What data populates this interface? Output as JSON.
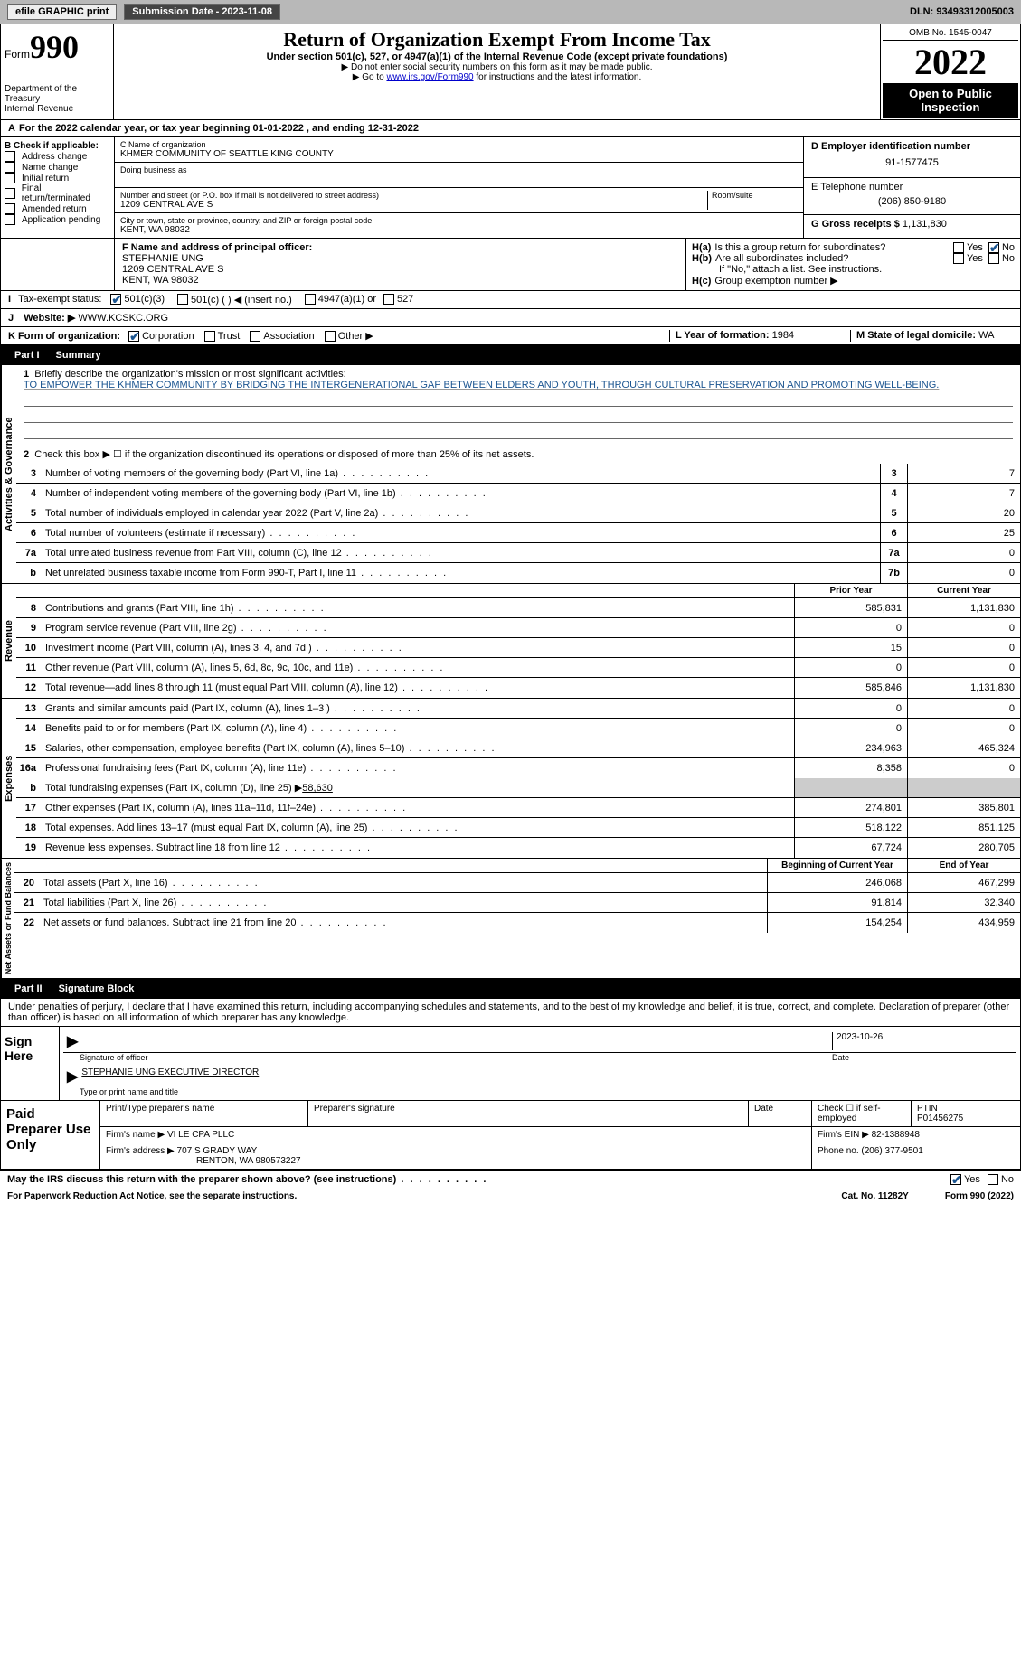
{
  "topbar": {
    "efile": "efile GRAPHIC print",
    "submission": "Submission Date - 2023-11-08",
    "dln": "DLN: 93493312005003"
  },
  "header": {
    "form_prefix": "Form",
    "form_number": "990",
    "dept": "Department of the Treasury\nInternal Revenue",
    "title": "Return of Organization Exempt From Income Tax",
    "subtitle": "Under section 501(c), 527, or 4947(a)(1) of the Internal Revenue Code (except private foundations)",
    "note1": "▶ Do not enter social security numbers on this form as it may be made public.",
    "note2_pre": "▶ Go to ",
    "note2_link": "www.irs.gov/Form990",
    "note2_post": " for instructions and the latest information.",
    "omb": "OMB No. 1545-0047",
    "year": "2022",
    "inspection": "Open to Public Inspection"
  },
  "line_a": "For the 2022 calendar year, or tax year beginning 01-01-2022    , and ending 12-31-2022",
  "line_a_prefix": "A",
  "block_b": {
    "label": "B Check if applicable:",
    "items": [
      "Address change",
      "Name change",
      "Initial return",
      "Final return/terminated",
      "Amended return",
      "Application pending"
    ]
  },
  "block_c": {
    "name_label": "C Name of organization",
    "name": "KHMER COMMUNITY OF SEATTLE KING COUNTY",
    "dba_label": "Doing business as",
    "dba": "",
    "street_label": "Number and street (or P.O. box if mail is not delivered to street address)",
    "room_label": "Room/suite",
    "street": "1209 CENTRAL AVE S",
    "city_label": "City or town, state or province, country, and ZIP or foreign postal code",
    "city": "KENT, WA  98032"
  },
  "block_d": {
    "label": "D Employer identification number",
    "value": "91-1577475"
  },
  "block_e": {
    "label": "E Telephone number",
    "value": "(206) 850-9180"
  },
  "block_g": {
    "label": "G Gross receipts $",
    "value": "1,131,830"
  },
  "block_f": {
    "label": "F Name and address of principal officer:",
    "name": "STEPHANIE UNG",
    "street": "1209 CENTRAL AVE S",
    "city": "KENT, WA  98032"
  },
  "block_h": {
    "a": "Is this a group return for subordinates?",
    "b": "Are all subordinates included?",
    "b_note": "If \"No,\" attach a list. See instructions.",
    "c": "Group exemption number ▶",
    "yes": "Yes",
    "no": "No"
  },
  "block_i": {
    "label": "Tax-exempt status:",
    "opts": [
      "501(c)(3)",
      "501(c) (  ) ◀ (insert no.)",
      "4947(a)(1) or",
      "527"
    ]
  },
  "block_j": {
    "label": "Website: ▶",
    "value": "WWW.KCSKC.ORG"
  },
  "block_k": {
    "label": "K Form of organization:",
    "opts": [
      "Corporation",
      "Trust",
      "Association",
      "Other ▶"
    ]
  },
  "block_l": {
    "label": "L Year of formation:",
    "value": "1984"
  },
  "block_m": {
    "label": "M State of legal domicile:",
    "value": "WA"
  },
  "parts": {
    "p1": {
      "label": "Part I",
      "title": "Summary"
    },
    "p2": {
      "label": "Part II",
      "title": "Signature Block"
    }
  },
  "sections": {
    "governance": "Activities & Governance",
    "revenue": "Revenue",
    "expenses": "Expenses",
    "netassets": "Net Assets or Fund Balances"
  },
  "summary": {
    "line1_label": "Briefly describe the organization's mission or most significant activities:",
    "line1_text": "TO EMPOWER THE KHMER COMMUNITY BY BRIDGING THE INTERGENERATIONAL GAP BETWEEN ELDERS AND YOUTH, THROUGH CULTURAL PRESERVATION AND PROMOTING WELL-BEING.",
    "line2": "Check this box ▶ ☐  if the organization discontinued its operations or disposed of more than 25% of its net assets.",
    "lines": [
      {
        "n": "3",
        "d": "Number of voting members of the governing body (Part VI, line 1a)",
        "b": "3",
        "v": "7"
      },
      {
        "n": "4",
        "d": "Number of independent voting members of the governing body (Part VI, line 1b)",
        "b": "4",
        "v": "7"
      },
      {
        "n": "5",
        "d": "Total number of individuals employed in calendar year 2022 (Part V, line 2a)",
        "b": "5",
        "v": "20"
      },
      {
        "n": "6",
        "d": "Total number of volunteers (estimate if necessary)",
        "b": "6",
        "v": "25"
      },
      {
        "n": "7a",
        "d": "Total unrelated business revenue from Part VIII, column (C), line 12",
        "b": "7a",
        "v": "0"
      },
      {
        "n": "b",
        "d": "Net unrelated business taxable income from Form 990-T, Part I, line 11",
        "b": "7b",
        "v": "0"
      }
    ],
    "col_prior": "Prior Year",
    "col_current": "Current Year",
    "revenue_lines": [
      {
        "n": "8",
        "d": "Contributions and grants (Part VIII, line 1h)",
        "p": "585,831",
        "c": "1,131,830"
      },
      {
        "n": "9",
        "d": "Program service revenue (Part VIII, line 2g)",
        "p": "0",
        "c": "0"
      },
      {
        "n": "10",
        "d": "Investment income (Part VIII, column (A), lines 3, 4, and 7d )",
        "p": "15",
        "c": "0"
      },
      {
        "n": "11",
        "d": "Other revenue (Part VIII, column (A), lines 5, 6d, 8c, 9c, 10c, and 11e)",
        "p": "0",
        "c": "0"
      },
      {
        "n": "12",
        "d": "Total revenue—add lines 8 through 11 (must equal Part VIII, column (A), line 12)",
        "p": "585,846",
        "c": "1,131,830"
      }
    ],
    "expense_lines": [
      {
        "n": "13",
        "d": "Grants and similar amounts paid (Part IX, column (A), lines 1–3 )",
        "p": "0",
        "c": "0"
      },
      {
        "n": "14",
        "d": "Benefits paid to or for members (Part IX, column (A), line 4)",
        "p": "0",
        "c": "0"
      },
      {
        "n": "15",
        "d": "Salaries, other compensation, employee benefits (Part IX, column (A), lines 5–10)",
        "p": "234,963",
        "c": "465,324"
      },
      {
        "n": "16a",
        "d": "Professional fundraising fees (Part IX, column (A), line 11e)",
        "p": "8,358",
        "c": "0"
      }
    ],
    "line16b": {
      "n": "b",
      "d": "Total fundraising expenses (Part IX, column (D), line 25) ▶",
      "v": "58,630"
    },
    "expense_lines2": [
      {
        "n": "17",
        "d": "Other expenses (Part IX, column (A), lines 11a–11d, 11f–24e)",
        "p": "274,801",
        "c": "385,801"
      },
      {
        "n": "18",
        "d": "Total expenses. Add lines 13–17 (must equal Part IX, column (A), line 25)",
        "p": "518,122",
        "c": "851,125"
      },
      {
        "n": "19",
        "d": "Revenue less expenses. Subtract line 18 from line 12",
        "p": "67,724",
        "c": "280,705"
      }
    ],
    "col_begin": "Beginning of Current Year",
    "col_end": "End of Year",
    "asset_lines": [
      {
        "n": "20",
        "d": "Total assets (Part X, line 16)",
        "p": "246,068",
        "c": "467,299"
      },
      {
        "n": "21",
        "d": "Total liabilities (Part X, line 26)",
        "p": "91,814",
        "c": "32,340"
      },
      {
        "n": "22",
        "d": "Net assets or fund balances. Subtract line 21 from line 20",
        "p": "154,254",
        "c": "434,959"
      }
    ]
  },
  "sig": {
    "declaration": "Under penalties of perjury, I declare that I have examined this return, including accompanying schedules and statements, and to the best of my knowledge and belief, it is true, correct, and complete. Declaration of preparer (other than officer) is based on all information of which preparer has any knowledge.",
    "sign_here": "Sign Here",
    "sig_officer": "Signature of officer",
    "sig_date": "2023-10-26",
    "date_label": "Date",
    "name_title": "STEPHANIE UNG  EXECUTIVE DIRECTOR",
    "name_label": "Type or print name and title"
  },
  "prep": {
    "label": "Paid Preparer Use Only",
    "print_label": "Print/Type preparer's name",
    "sig_label": "Preparer's signature",
    "date_label": "Date",
    "check_label": "Check ☐ if self-employed",
    "ptin_label": "PTIN",
    "ptin": "P01456275",
    "firm_name_label": "Firm's name    ▶",
    "firm_name": "VI LE CPA PLLC",
    "firm_ein_label": "Firm's EIN ▶",
    "firm_ein": "82-1388948",
    "firm_addr_label": "Firm's address ▶",
    "firm_addr": "707 S GRADY WAY",
    "firm_city": "RENTON, WA  980573227",
    "phone_label": "Phone no.",
    "phone": "(206) 377-9501"
  },
  "discuss": {
    "q": "May the IRS discuss this return with the preparer shown above? (see instructions)",
    "yes": "Yes",
    "no": "No"
  },
  "footer": {
    "pra": "For Paperwork Reduction Act Notice, see the separate instructions.",
    "cat": "Cat. No. 11282Y",
    "form": "Form 990 (2022)"
  }
}
